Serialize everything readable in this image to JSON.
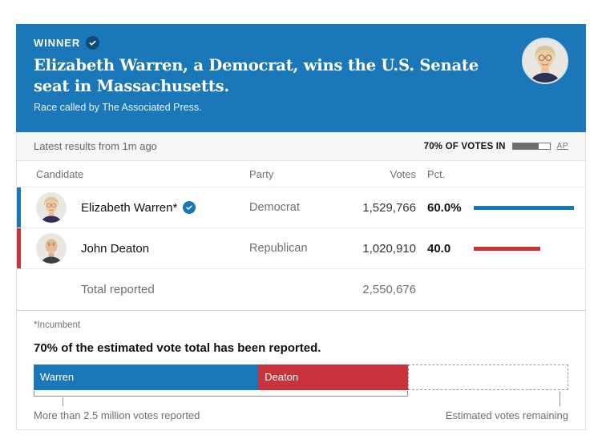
{
  "theme": {
    "header_blue": "#1a77b8",
    "dem_blue": "#1a77b8",
    "rep_red": "#c9333b",
    "badge_navy": "#0e4c77",
    "bar_gray": "#6d6d6d"
  },
  "header": {
    "winner_label": "WINNER",
    "headline": "Elizabeth Warren, a Democrat, wins the U.S. Senate seat in Massachusetts.",
    "subhead": "Race called by The Associated Press.",
    "avatar_name": "elizabeth-warren-portrait"
  },
  "status_bar": {
    "latest_results": "Latest results from 1m ago",
    "votes_in_label": "70% OF VOTES IN",
    "votes_in_pct": 70,
    "source": "AP"
  },
  "results_table": {
    "columns": {
      "candidate": "Candidate",
      "party": "Party",
      "votes": "Votes",
      "pct": "Pct."
    },
    "rows": [
      {
        "name": "Elizabeth Warren*",
        "winner": true,
        "party": "Democrat",
        "votes": "1,529,766",
        "pct": "60.0%",
        "pct_value": 60,
        "color": "#1a77b8"
      },
      {
        "name": "John Deaton",
        "winner": false,
        "party": "Republican",
        "votes": "1,020,910",
        "pct": "40.0",
        "pct_value": 40,
        "color": "#c9333b"
      }
    ],
    "total_label": "Total reported",
    "total_votes": "2,550,676"
  },
  "footnote": "*Incumbent",
  "chart_data": {
    "type": "bar",
    "title": "70% of the estimated vote total has been reported.",
    "segments": [
      {
        "label": "Warren",
        "share_of_total_pct": 42,
        "color": "#1a77b8"
      },
      {
        "label": "Deaton",
        "share_of_total_pct": 28,
        "color": "#c9333b"
      }
    ],
    "remaining_share_pct": 30,
    "left_note": "More than 2.5 million votes reported",
    "right_note": "Estimated votes remaining"
  }
}
